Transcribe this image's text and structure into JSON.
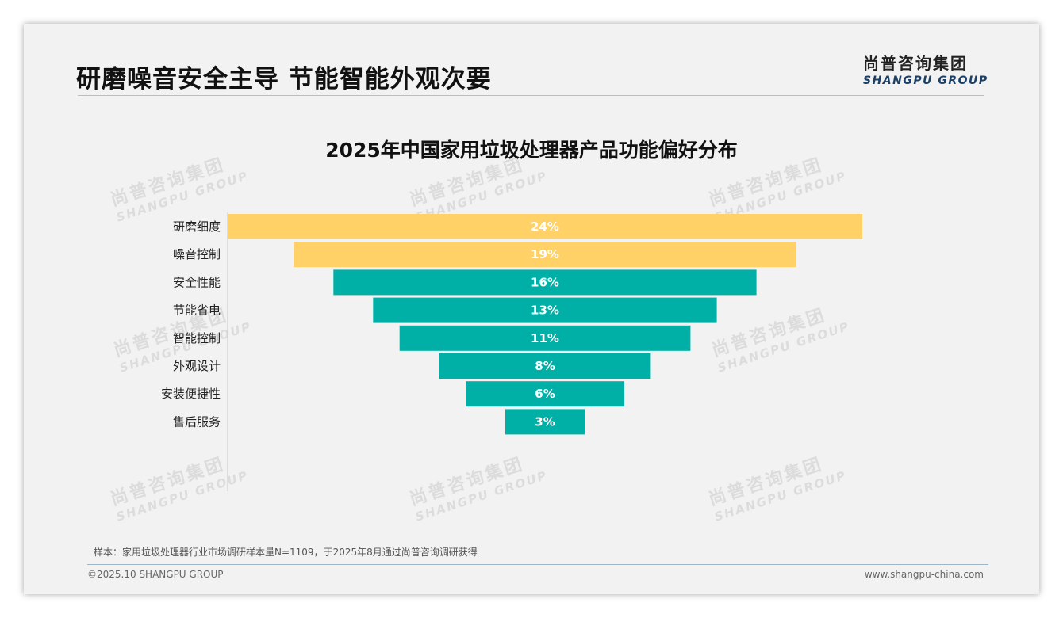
{
  "header": {
    "title": "研磨噪音安全主导 节能智能外观次要",
    "logo_cn": "尚普咨询集团",
    "logo_en": "SHANGPU GROUP"
  },
  "watermark": {
    "cn": "尚普咨询集团",
    "en": "SHANGPU GROUP"
  },
  "chart_data": {
    "type": "bar",
    "orientation": "horizontal-funnel",
    "title": "2025年中国家用垃圾处理器产品功能偏好分布",
    "categories": [
      "研磨细度",
      "噪音控制",
      "安全性能",
      "节能省电",
      "智能控制",
      "外观设计",
      "安装便捷性",
      "售后服务"
    ],
    "values": [
      24,
      19,
      16,
      13,
      11,
      8,
      6,
      3
    ],
    "value_labels": [
      "24%",
      "19%",
      "16%",
      "13%",
      "11%",
      "8%",
      "6%",
      "3%"
    ],
    "unit": "%",
    "highlight_count": 2,
    "colors": {
      "highlight": "#ffd166",
      "normal": "#00b0a6",
      "label": "#ffffff"
    },
    "grid": false,
    "legend": "none"
  },
  "footer": {
    "note": "样本：家用垃圾处理器行业市场调研样本量N=1109，于2025年8月通过尚普咨询调研获得",
    "copyright": "©2025.10 SHANGPU GROUP",
    "website": "www.shangpu-china.com"
  }
}
